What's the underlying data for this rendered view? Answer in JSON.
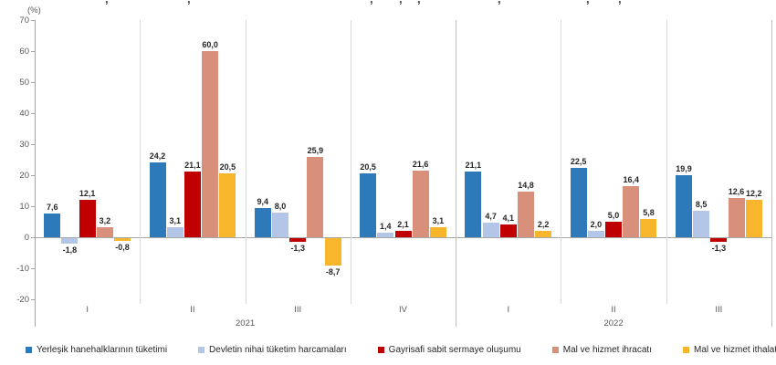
{
  "page": {
    "background": "#FFFFFF",
    "note": "Top chart title is cropped out of the screenshot; only descender fragments (commas) of it are visible."
  },
  "clipped_title": {
    "fragments": [
      {
        "ch": ",",
        "x": 115
      },
      {
        "ch": ",",
        "x": 205
      },
      {
        "ch": ",",
        "x": 405
      },
      {
        "ch": ",",
        "x": 437
      },
      {
        "ch": ",",
        "x": 457
      },
      {
        "ch": ",",
        "x": 545
      },
      {
        "ch": ",",
        "x": 642
      },
      {
        "ch": ",",
        "x": 677
      }
    ]
  },
  "chart_data": {
    "type": "bar",
    "unit_label": "(%)",
    "x_labels": [
      "I",
      "II",
      "III",
      "IV",
      "I",
      "II",
      "III"
    ],
    "year_groups": [
      {
        "label": "2021",
        "quarters": 4
      },
      {
        "label": "2022",
        "quarters": 3
      }
    ],
    "y_ticks": [
      70,
      60,
      50,
      40,
      30,
      20,
      10,
      0,
      -10,
      -20
    ],
    "ylim": [
      -20,
      70
    ],
    "grid": false,
    "vertical_category_separators": true,
    "legend_position": "bottom",
    "value_label_decimal_separator": ",",
    "series": [
      {
        "name": "Yerleşik hanehalklarının tüketimi",
        "color": "#2E79B9",
        "values": [
          7.6,
          24.2,
          9.4,
          20.5,
          21.1,
          22.5,
          19.9
        ]
      },
      {
        "name": "Devletin nihai tüketim harcamaları",
        "color": "#B3C6E7",
        "values": [
          -1.8,
          3.1,
          8.0,
          1.4,
          4.7,
          2.0,
          8.5
        ]
      },
      {
        "name": "Gayrisafi sabit sermaye oluşumu",
        "color": "#C00000",
        "values": [
          12.1,
          21.1,
          -1.3,
          2.1,
          4.1,
          5.0,
          -1.3
        ]
      },
      {
        "name": "Mal ve hizmet ihracatı",
        "color": "#D9907A",
        "values": [
          3.2,
          60.0,
          25.9,
          21.6,
          14.8,
          16.4,
          12.6
        ]
      },
      {
        "name": "Mal ve hizmet ithalatı",
        "color": "#F8B62D",
        "values": [
          -0.8,
          20.5,
          -8.7,
          3.1,
          2.2,
          5.8,
          12.2
        ]
      }
    ]
  }
}
